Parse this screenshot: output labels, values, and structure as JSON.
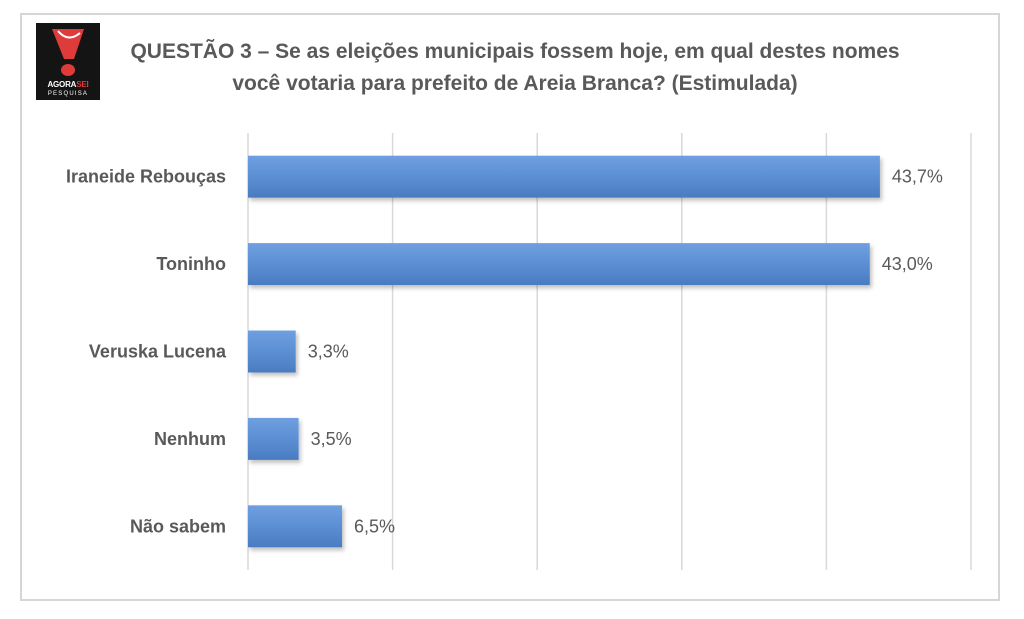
{
  "logo": {
    "brand_part1": "AGORA",
    "brand_part2": "SEI",
    "subtitle": "PESQUISA",
    "accent_color": "#e03b3b"
  },
  "chart_data": {
    "type": "bar",
    "orientation": "horizontal",
    "title": "QUESTÃO 3 – Se as eleições municipais fossem hoje, em qual destes nomes você votaria para prefeito de Areia Branca? (Estimulada)",
    "categories": [
      "Iraneide Rebouças",
      "Toninho",
      "Veruska Lucena",
      "Nenhum",
      "Não sabem"
    ],
    "values": [
      43.7,
      43.0,
      3.3,
      3.5,
      6.5
    ],
    "value_labels": [
      "43,7%",
      "43,0%",
      "3,3%",
      "3,5%",
      "6,5%"
    ],
    "xlim": [
      0,
      50
    ],
    "grid": true,
    "bar_color": "#5b8fd4",
    "legend": "none"
  }
}
